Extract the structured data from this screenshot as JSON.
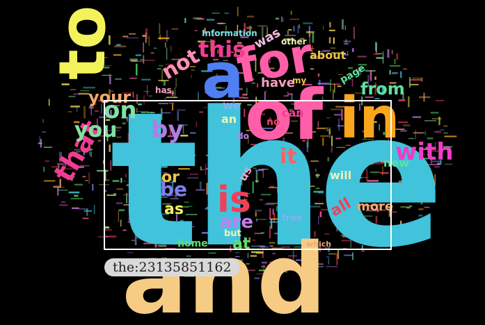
{
  "words": [
    {
      "text": "the",
      "color": "#41c3dc"
    },
    {
      "text": "and",
      "color": "#f6cb83"
    },
    {
      "text": "of",
      "color": "#fe5fa8"
    },
    {
      "text": "to",
      "color": "#f3f25b"
    },
    {
      "text": "a",
      "color": "#4f7ff3"
    },
    {
      "text": "in",
      "color": "#f9a61c"
    },
    {
      "text": "for",
      "color": "#fe5fa8"
    },
    {
      "text": "is",
      "color": "#f0405b"
    },
    {
      "text": "that",
      "color": "#f03c92"
    },
    {
      "text": "on",
      "color": "#7fe2a0"
    },
    {
      "text": "by",
      "color": "#b07de6"
    },
    {
      "text": "with",
      "color": "#f03cc7"
    },
    {
      "text": "you",
      "color": "#7fe2a0"
    },
    {
      "text": "this",
      "color": "#f03c92"
    },
    {
      "text": "not",
      "color": "#fe8fb4"
    },
    {
      "text": "it",
      "color": "#fe5f5f"
    },
    {
      "text": "be",
      "color": "#7f7ff0"
    },
    {
      "text": "or",
      "color": "#f3c24a"
    },
    {
      "text": "are",
      "color": "#c27ff0"
    },
    {
      "text": "from",
      "color": "#5fe1a0"
    },
    {
      "text": "at",
      "color": "#5fe16a"
    },
    {
      "text": "as",
      "color": "#f3f25b"
    },
    {
      "text": "your",
      "color": "#f3a86a"
    },
    {
      "text": "all",
      "color": "#f0405b"
    },
    {
      "text": "more",
      "color": "#f3a86a"
    },
    {
      "text": "have",
      "color": "#f3a0c0"
    },
    {
      "text": "new",
      "color": "#5fe1a0"
    },
    {
      "text": "about",
      "color": "#f3c24a"
    },
    {
      "text": "was",
      "color": "#f3c0e0"
    },
    {
      "text": "will",
      "color": "#f3f2b0"
    },
    {
      "text": "can",
      "color": "#f03c92"
    },
    {
      "text": "we",
      "color": "#7fb4f0"
    },
    {
      "text": "an",
      "color": "#f3f2b0"
    },
    {
      "text": "home",
      "color": "#5fe16a"
    },
    {
      "text": "page",
      "color": "#5fe1a0"
    },
    {
      "text": "us",
      "color": "#f3a0c0"
    },
    {
      "text": "but",
      "color": "#f3f2b0"
    },
    {
      "text": "free",
      "color": "#7fb4f0"
    },
    {
      "text": "has",
      "color": "#f3a0c0"
    },
    {
      "text": "other",
      "color": "#f3f2b0"
    },
    {
      "text": "Information",
      "color": "#7fe2e0"
    },
    {
      "text": "my",
      "color": "#f3c24a"
    },
    {
      "text": "no",
      "color": "#f0405b"
    },
    {
      "text": "do",
      "color": "#c27ff0"
    },
    {
      "text": "which",
      "color": "#f3a86a"
    },
    {
      "text": "i",
      "color": "#41c3dc"
    }
  ],
  "tooltip": {
    "text": "the:23135851162"
  }
}
